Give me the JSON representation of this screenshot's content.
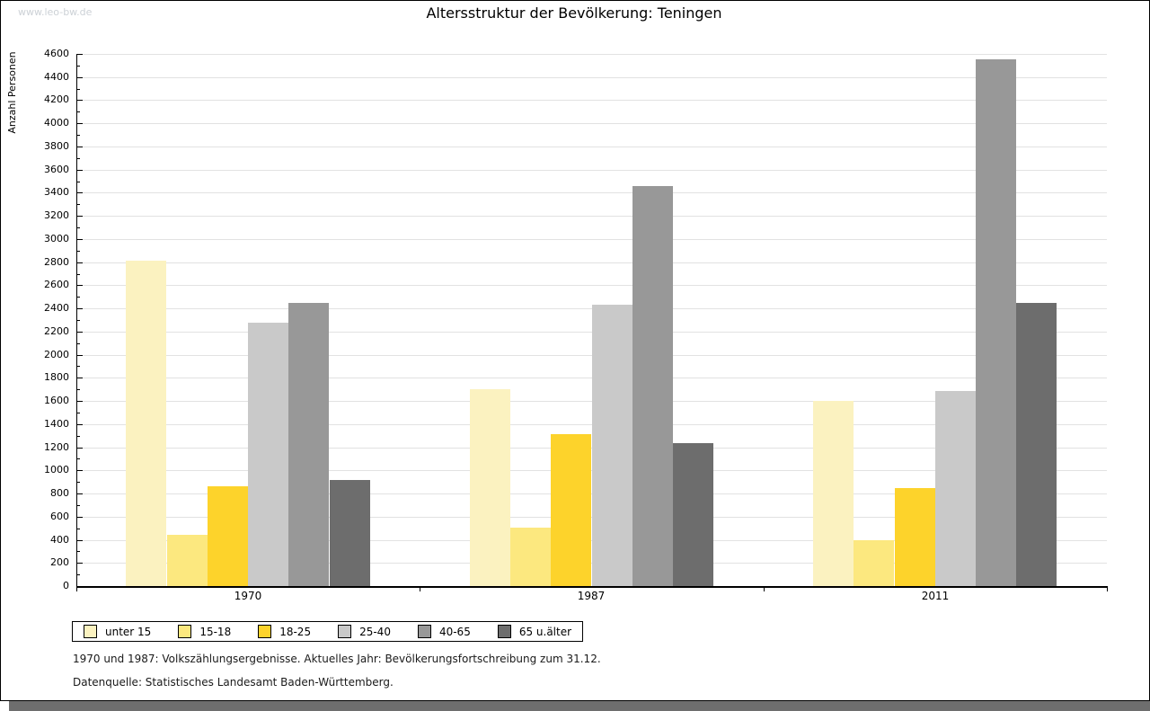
{
  "page": {
    "watermark": "www.leo-bw.de",
    "title": "Altersstruktur der Bevölkerung: Teningen",
    "footnote_line1": "1970 und 1987: Volkszählungsergebnisse. Aktuelles Jahr: Bevölkerungsfortschreibung zum 31.12.",
    "footnote_line2": "Datenquelle: Statistisches Landesamt Baden-Württemberg."
  },
  "chart_data": {
    "type": "bar",
    "title": "Altersstruktur der Bevölkerung: Teningen",
    "xlabel": "",
    "ylabel": "Anzahl Personen",
    "categories": [
      "1970",
      "1987",
      "2011"
    ],
    "series": [
      {
        "name": "unter 15",
        "color": "#fbf2c0",
        "values": [
          2810,
          1700,
          1600
        ]
      },
      {
        "name": "15-18",
        "color": "#fce87f",
        "values": [
          440,
          505,
          400
        ]
      },
      {
        "name": "18-25",
        "color": "#fdd32b",
        "values": [
          865,
          1315,
          845
        ]
      },
      {
        "name": "25-40",
        "color": "#c9c9c9",
        "values": [
          2280,
          2430,
          1690
        ]
      },
      {
        "name": "40-65",
        "color": "#989898",
        "values": [
          2450,
          3460,
          4550
        ]
      },
      {
        "name": "65 u.älter",
        "color": "#6d6d6d",
        "values": [
          915,
          1235,
          2450
        ]
      }
    ],
    "ylim": [
      0,
      4600
    ],
    "ytick_step": 200,
    "yminor_step": 100,
    "grid": true,
    "legend_position": "bottom-left"
  },
  "colors": {
    "grid": "#e2e2e2",
    "axis": "#000000",
    "watermark": "#ccd1d6",
    "shadow": "#6e6e6e"
  }
}
